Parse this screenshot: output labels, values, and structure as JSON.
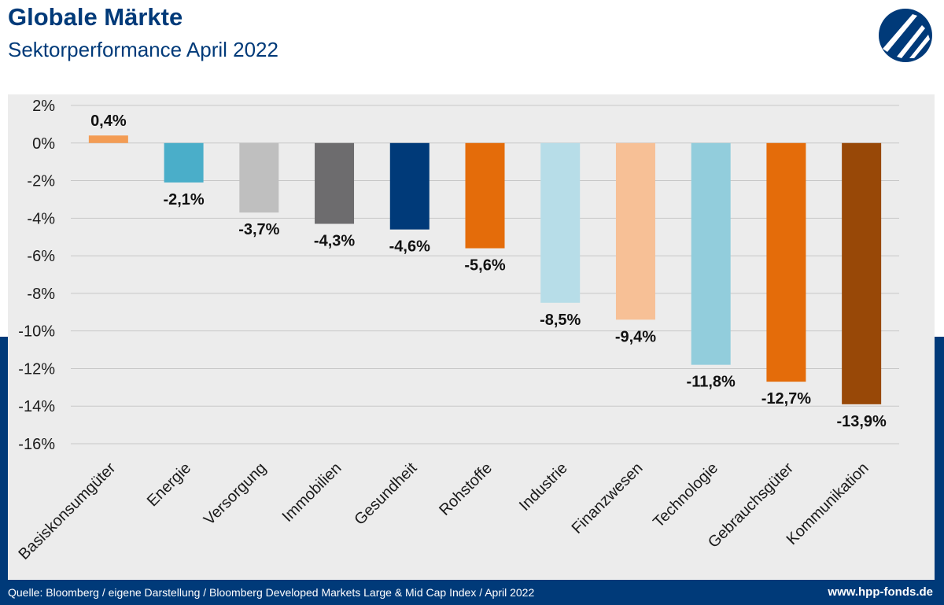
{
  "header": {
    "title": "Globale Märkte",
    "subtitle": "Sektorperformance April 2022",
    "logo_icon": "hpp-logo-icon"
  },
  "footer": {
    "source": "Quelle: Bloomberg / eigene Darstellung / Bloomberg Developed Markets Large & Mid Cap Index / April 2022",
    "website": "www.hpp-fonds.de"
  },
  "colors": {
    "brand": "#003a79",
    "panel": "#ececec"
  },
  "chart_data": {
    "type": "bar",
    "title": "",
    "xlabel": "",
    "ylabel": "",
    "ylim": [
      -16,
      2
    ],
    "yticks": [
      "2%",
      "0%",
      "-2%",
      "-4%",
      "-6%",
      "-8%",
      "-10%",
      "-12%",
      "-14%",
      "-16%"
    ],
    "ytick_values": [
      2,
      0,
      -2,
      -4,
      -6,
      -8,
      -10,
      -12,
      -14,
      -16
    ],
    "grid": true,
    "legend": "none",
    "categories": [
      "Basiskonsumgüter",
      "Energie",
      "Versorgung",
      "Immobilien",
      "Gesundheit",
      "Rohstoffe",
      "Industrie",
      "Finanzwesen",
      "Technologie",
      "Gebrauchsgüter",
      "Kommunikation"
    ],
    "values": [
      0.4,
      -2.1,
      -3.7,
      -4.3,
      -4.6,
      -5.6,
      -8.5,
      -9.4,
      -11.8,
      -12.7,
      -13.9
    ],
    "labels": [
      "0,4%",
      "-2,1%",
      "-3,7%",
      "-4,3%",
      "-4,6%",
      "-5,6%",
      "-8,5%",
      "-9,4%",
      "-11,8%",
      "-12,7%",
      "-13,9%"
    ],
    "bar_colors": [
      "#f39c54",
      "#4aaec9",
      "#bfbfbf",
      "#6d6c6e",
      "#003a79",
      "#e46c0a",
      "#b7dde8",
      "#f7c096",
      "#92cddc",
      "#e46c0a",
      "#984807"
    ]
  }
}
